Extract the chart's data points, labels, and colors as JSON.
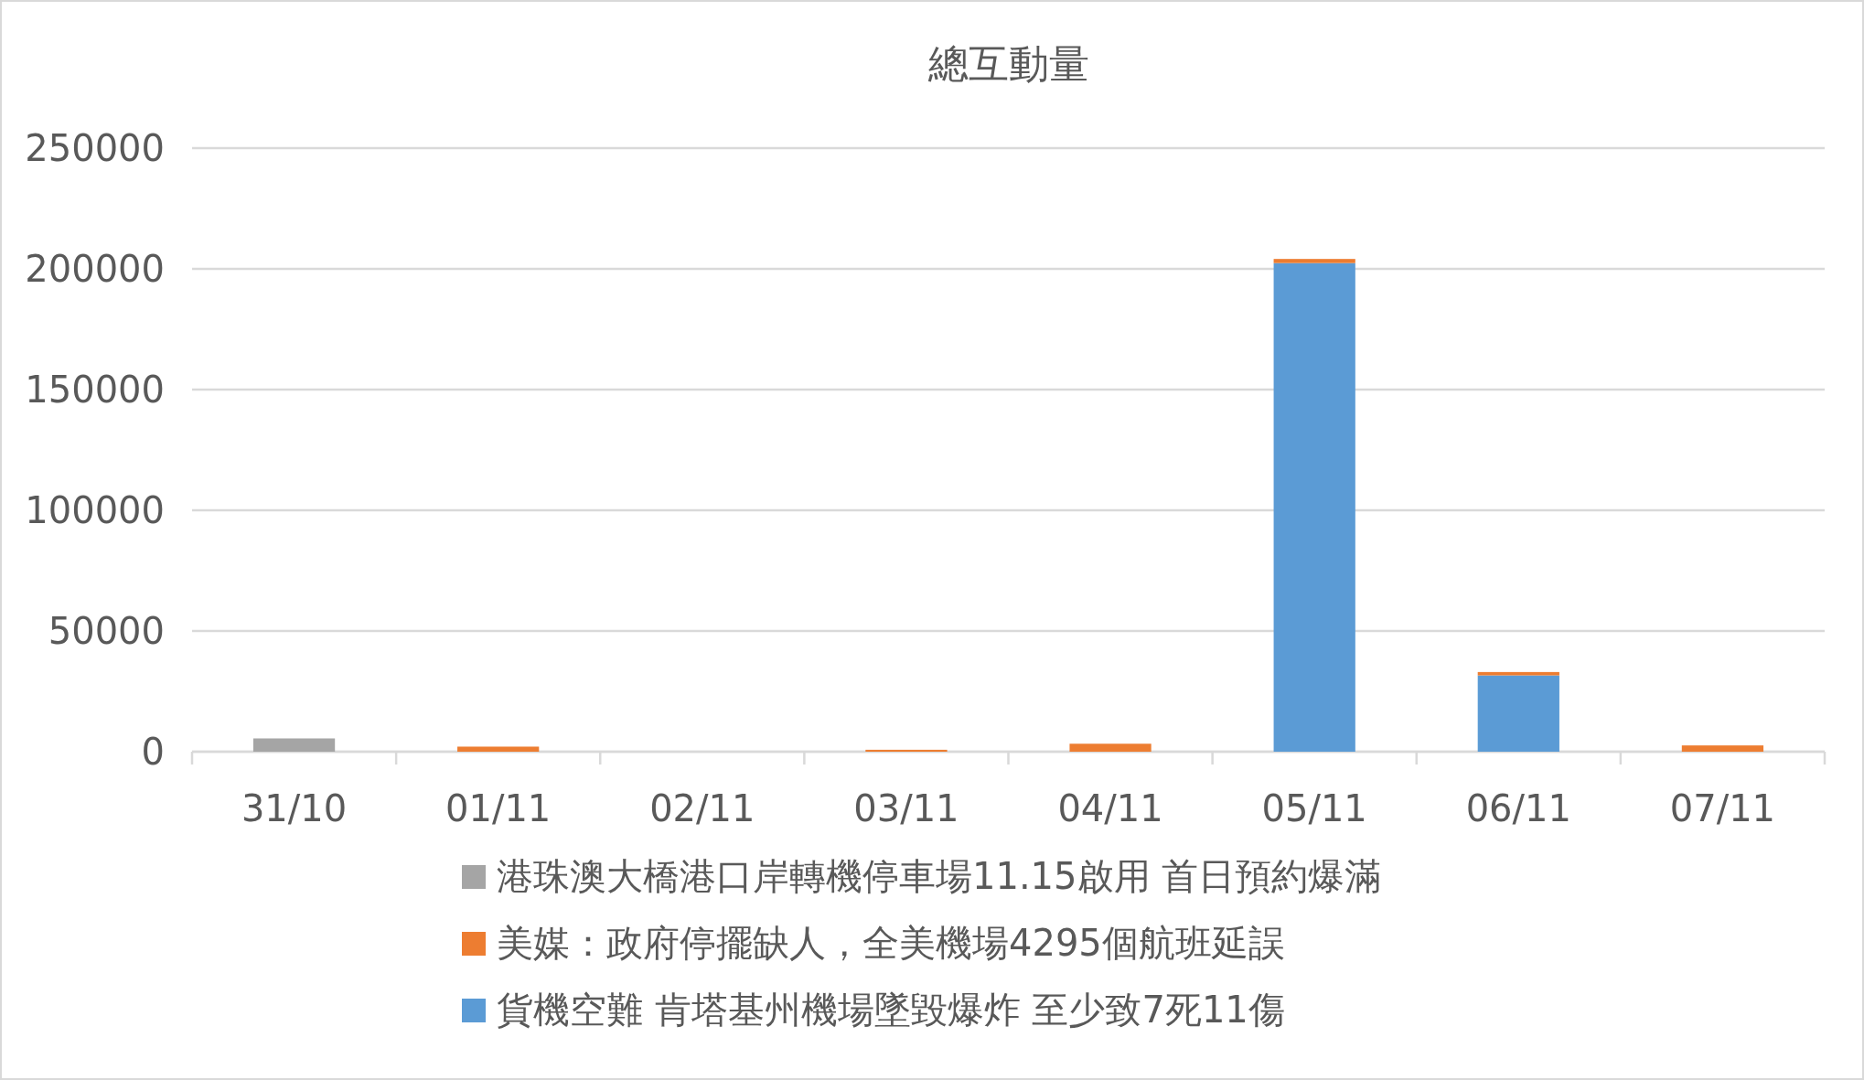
{
  "chart_data": {
    "type": "bar",
    "title": "總互動量",
    "stacked": true,
    "grid": "y",
    "legend": "bottom",
    "categories": [
      "31/10",
      "01/11",
      "02/11",
      "03/11",
      "04/11",
      "05/11",
      "06/11",
      "07/11"
    ],
    "ylim": [
      0,
      250000
    ],
    "yticks": [
      0,
      50000,
      100000,
      150000,
      200000,
      250000
    ],
    "series": [
      {
        "name": "貨機空難 肯塔基州機場墜毀爆炸 至少致7死11傷",
        "color": "#5b9bd5",
        "values": [
          null,
          null,
          null,
          null,
          null,
          202400,
          31600,
          null
        ]
      },
      {
        "name": "美媒：政府停擺缺人，全美機場4295個航班延誤",
        "color": "#ed7d31",
        "values": [
          null,
          2100,
          null,
          800,
          3300,
          1700,
          1400,
          2600
        ]
      },
      {
        "name": "港珠澳大橋港口岸轉機停車場11.15啟用 首日預約爆滿",
        "color": "#a5a5a5",
        "values": [
          5500,
          null,
          null,
          null,
          null,
          null,
          null,
          null
        ]
      }
    ]
  }
}
